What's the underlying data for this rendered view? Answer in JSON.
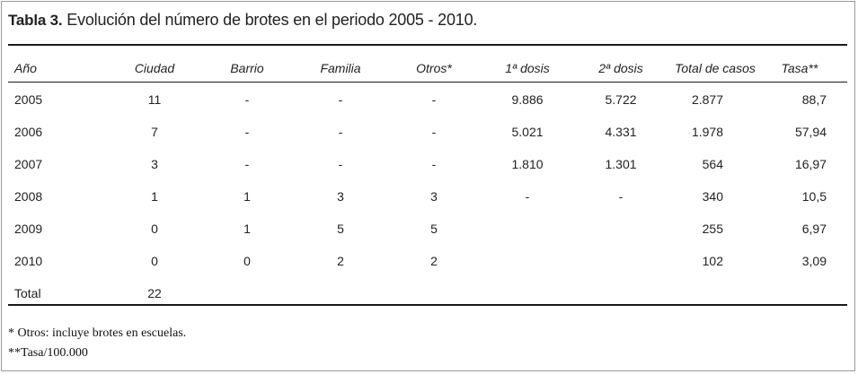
{
  "table": {
    "label": "Tabla 3.",
    "caption": "Evolución del número de brotes en el periodo 2005 - 2010.",
    "headers": [
      "Año",
      "Ciudad",
      "Barrio",
      "Familia",
      "Otros*",
      "1ª dosis",
      "2ª dosis",
      "Total de casos",
      "Tasa**"
    ],
    "rows": [
      [
        "2005",
        "11",
        "-",
        "-",
        "-",
        "9.886",
        "5.722",
        "2.877",
        "88,7"
      ],
      [
        "2006",
        "7",
        "-",
        "-",
        "-",
        "5.021",
        "4.331",
        "1.978",
        "57,94"
      ],
      [
        "2007",
        "3",
        "-",
        "-",
        "-",
        "1.810",
        "1.301",
        "564",
        "16,97"
      ],
      [
        "2008",
        "1",
        "1",
        "3",
        "3",
        "-",
        "-",
        "340",
        "10,5"
      ],
      [
        "2009",
        "0",
        "1",
        "5",
        "5",
        "",
        "",
        "255",
        "6,97"
      ],
      [
        "2010",
        "0",
        "0",
        "2",
        "2",
        "",
        "",
        "102",
        "3,09"
      ],
      [
        "Total",
        "22",
        "",
        "",
        "",
        "",
        "",
        "",
        ""
      ]
    ]
  },
  "footnotes": [
    "* Otros: incluye brotes en escuelas.",
    "**Tasa/100.000"
  ]
}
